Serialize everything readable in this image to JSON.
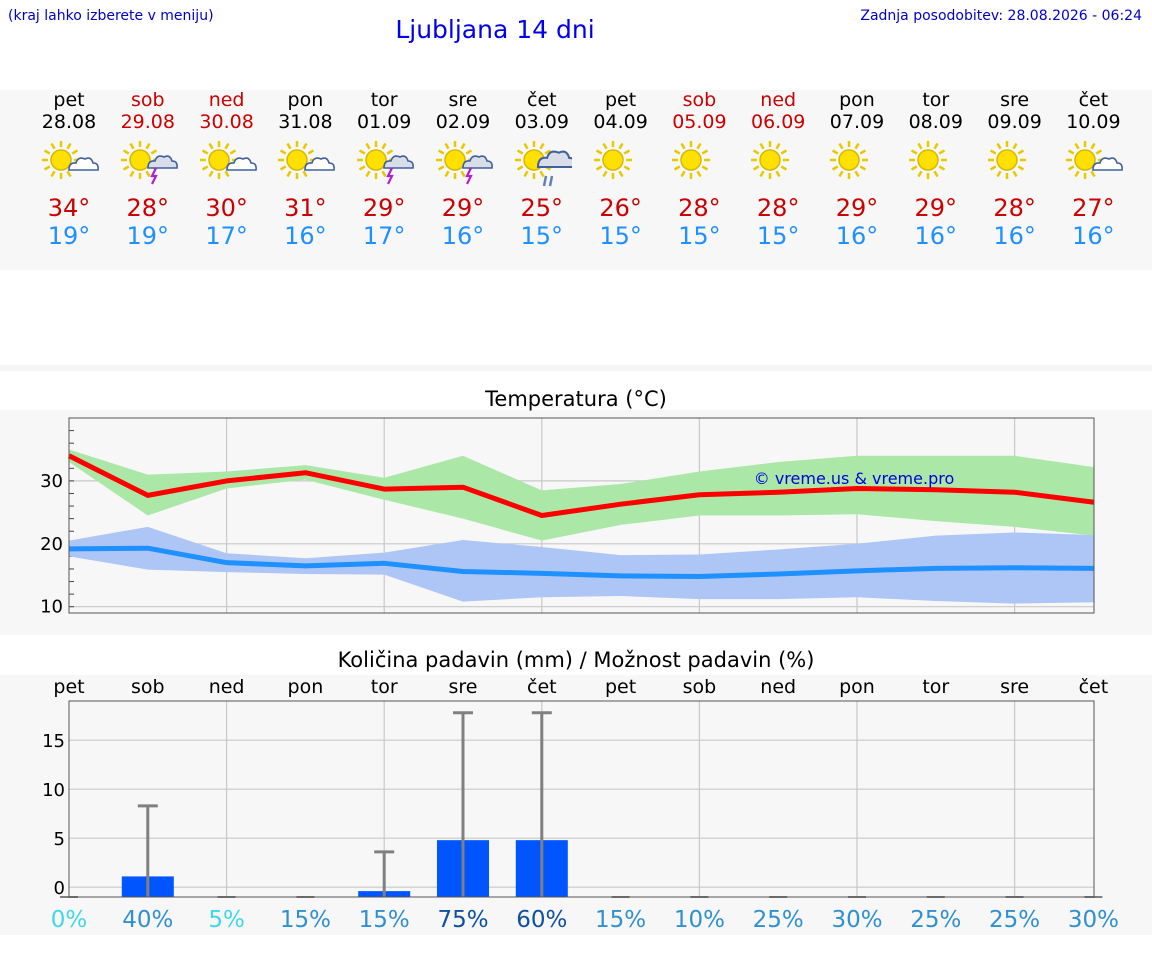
{
  "header": {
    "hint": "(kraj lahko izberete v meniju)",
    "title": "Ljubljana 14 dni",
    "updated": "Zadnja posodobitev: 28.08.2026 - 06:24"
  },
  "days": [
    {
      "name": "pet",
      "date": "28.08",
      "icon": "sun-cloud-icon",
      "max": "34°",
      "min": "19°",
      "weekend": false
    },
    {
      "name": "sob",
      "date": "29.08",
      "icon": "sun-storm-icon",
      "max": "28°",
      "min": "19°",
      "weekend": true
    },
    {
      "name": "ned",
      "date": "30.08",
      "icon": "sun-cloud-icon",
      "max": "30°",
      "min": "17°",
      "weekend": true
    },
    {
      "name": "pon",
      "date": "31.08",
      "icon": "sun-cloud-icon",
      "max": "31°",
      "min": "16°",
      "weekend": false
    },
    {
      "name": "tor",
      "date": "01.09",
      "icon": "sun-storm-icon",
      "max": "29°",
      "min": "17°",
      "weekend": false
    },
    {
      "name": "sre",
      "date": "02.09",
      "icon": "sun-storm-icon",
      "max": "29°",
      "min": "16°",
      "weekend": false
    },
    {
      "name": "čet",
      "date": "03.09",
      "icon": "sun-rain-icon",
      "max": "25°",
      "min": "15°",
      "weekend": false
    },
    {
      "name": "pet",
      "date": "04.09",
      "icon": "sun-icon",
      "max": "26°",
      "min": "15°",
      "weekend": false
    },
    {
      "name": "sob",
      "date": "05.09",
      "icon": "sun-icon",
      "max": "28°",
      "min": "15°",
      "weekend": true
    },
    {
      "name": "ned",
      "date": "06.09",
      "icon": "sun-icon",
      "max": "28°",
      "min": "15°",
      "weekend": true
    },
    {
      "name": "pon",
      "date": "07.09",
      "icon": "sun-icon",
      "max": "29°",
      "min": "16°",
      "weekend": false
    },
    {
      "name": "tor",
      "date": "08.09",
      "icon": "sun-icon",
      "max": "29°",
      "min": "16°",
      "weekend": false
    },
    {
      "name": "sre",
      "date": "09.09",
      "icon": "sun-icon",
      "max": "28°",
      "min": "16°",
      "weekend": false
    },
    {
      "name": "čet",
      "date": "10.09",
      "icon": "sun-cloud-icon",
      "max": "27°",
      "min": "16°",
      "weekend": false
    }
  ],
  "colors": {
    "max_line": "#ff0000",
    "max_band": "#abe8a8",
    "min_line": "#1e90ff",
    "min_band": "#aec6f5",
    "precip_bar": "#0055ff",
    "error_bar": "#808080",
    "weekend": "#cc0000",
    "accent": "#0000ee"
  },
  "chart_data": [
    {
      "type": "line",
      "title": "Temperatura (°C)",
      "watermark": "© vreme.us & vreme.pro",
      "x": [
        0,
        1,
        2,
        3,
        4,
        5,
        6,
        7,
        8,
        9,
        10,
        11,
        12,
        13
      ],
      "yticks": [
        10,
        20,
        30
      ],
      "ylim": [
        9,
        40
      ],
      "grid": true,
      "series": [
        {
          "values": [
            34,
            27.7,
            30,
            31.3,
            28.7,
            29,
            24.5,
            26.3,
            27.8,
            28.2,
            28.8,
            28.6,
            28.2,
            26.6
          ],
          "band_high": [
            35,
            31,
            31.5,
            32.5,
            30.5,
            34,
            28.5,
            29.5,
            31.5,
            33,
            34,
            34,
            34,
            32.2
          ],
          "band_low": [
            33,
            24.5,
            28.8,
            30.2,
            27,
            24,
            20.5,
            23,
            24.5,
            24.5,
            24.7,
            23.6,
            22.7,
            21.3
          ]
        },
        {
          "values": [
            19.2,
            19.3,
            17,
            16.5,
            16.9,
            15.6,
            15.3,
            14.9,
            14.8,
            15.2,
            15.7,
            16.1,
            16.2,
            16.1
          ],
          "band_high": [
            20.5,
            22.7,
            18.5,
            17.7,
            18.6,
            20.6,
            19.5,
            18.2,
            18.3,
            19.1,
            20,
            21.3,
            21.8,
            21.4
          ],
          "band_low": [
            18,
            15.9,
            15.5,
            15.2,
            15.1,
            10.8,
            11.5,
            11.7,
            11.2,
            11.2,
            11.5,
            10.9,
            10.5,
            10.7
          ]
        }
      ]
    },
    {
      "type": "bar",
      "title": "Količina padavin (mm) / Možnost padavin (%)",
      "categories": [
        "pet",
        "sob",
        "ned",
        "pon",
        "tor",
        "sre",
        "čet",
        "pet",
        "sob",
        "ned",
        "pon",
        "tor",
        "sre",
        "čet"
      ],
      "values": [
        0,
        2.1,
        0,
        0,
        0.6,
        5.8,
        5.8,
        0,
        0,
        0,
        0,
        0,
        0,
        0
      ],
      "error_max": [
        0,
        8.3,
        0,
        0,
        3.6,
        17.8,
        17.8,
        0,
        0,
        0,
        0,
        0,
        0,
        0
      ],
      "probability": [
        "0%",
        "40%",
        "5%",
        "15%",
        "15%",
        "75%",
        "60%",
        "15%",
        "10%",
        "25%",
        "30%",
        "25%",
        "25%",
        "30%"
      ],
      "probability_colors": [
        "#40d8e8",
        "#3090d0",
        "#40d8e8",
        "#3090d0",
        "#3090d0",
        "#1050a0",
        "#1050a0",
        "#3090d0",
        "#3090d0",
        "#3090d0",
        "#3090d0",
        "#3090d0",
        "#3090d0",
        "#3090d0"
      ],
      "yticks": [
        0,
        5,
        10,
        15
      ],
      "ytick_labels": [
        "0",
        "5",
        "10",
        "15"
      ],
      "ylim": [
        -1,
        19
      ],
      "grid": true
    }
  ]
}
